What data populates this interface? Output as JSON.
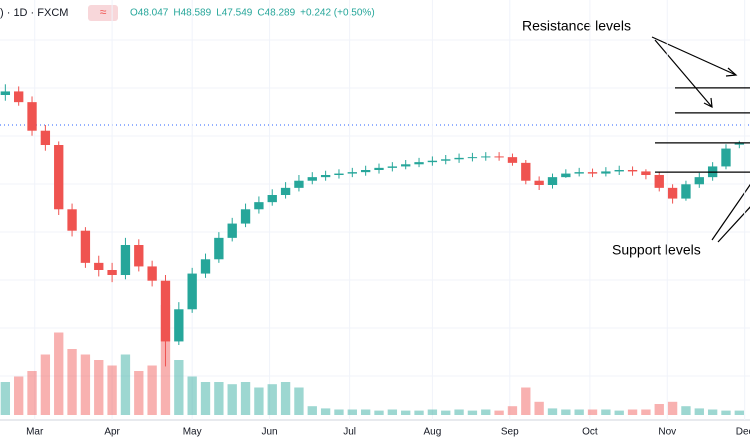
{
  "chart_data": {
    "type": "candlestick",
    "symbol": ") · 1D · FXCM",
    "badge": "≈",
    "legend_values": [
      "O48.047",
      "H48.589",
      "L47.549",
      "C48.289",
      "+0.242 (+0.50%)"
    ],
    "annotations": {
      "resistance": "Resistance levels",
      "support": "Support levels"
    },
    "resistance_levels": [
      56.0,
      52.5
    ],
    "support_levels": [
      48.3,
      44.2
    ],
    "x": [
      2,
      7,
      12,
      17,
      22,
      27,
      32,
      37,
      42,
      47,
      52,
      57,
      62,
      67,
      72,
      77,
      82,
      87,
      92,
      97,
      102,
      107,
      112,
      117,
      122,
      127,
      132,
      137,
      142,
      147,
      152,
      157,
      162,
      167,
      172,
      177,
      182,
      187,
      192,
      197,
      202,
      207,
      212,
      217,
      222,
      227,
      232,
      237,
      242,
      247,
      252,
      257,
      262,
      267,
      272,
      277
    ],
    "open": [
      55,
      55.5,
      54,
      50,
      48,
      39,
      36,
      31.5,
      30.5,
      29.8,
      34,
      31,
      29,
      20.5,
      25,
      30,
      32,
      35,
      37,
      39,
      40,
      41,
      42,
      43,
      43.5,
      43.8,
      44,
      44.2,
      44.5,
      44.8,
      45,
      45.3,
      45.6,
      45.8,
      46,
      46.2,
      46.3,
      46.4,
      46.3,
      45.5,
      43,
      42.4,
      43.5,
      44,
      44.2,
      44,
      44.3,
      44.5,
      44.3,
      43.8,
      42,
      40.5,
      42.5,
      43.5,
      45,
      48.047
    ],
    "high": [
      56.5,
      56.2,
      54.8,
      50.8,
      48.5,
      39.8,
      36.5,
      32.5,
      31.5,
      35,
      34.8,
      31.8,
      29.8,
      26,
      30.8,
      32.8,
      35.8,
      37.8,
      39.8,
      40.8,
      41.8,
      42.8,
      43.8,
      44.2,
      44.4,
      44.6,
      44.8,
      45.1,
      45.4,
      45.6,
      45.9,
      46.2,
      46.4,
      46.6,
      46.8,
      46.9,
      47,
      47,
      46.8,
      45.9,
      43.6,
      44,
      44.6,
      44.8,
      44.7,
      44.9,
      45.1,
      45,
      44.6,
      44.2,
      42.5,
      43,
      44.1,
      45.6,
      48.1,
      48.589
    ],
    "low": [
      54.2,
      53.5,
      49.3,
      47.2,
      38.2,
      35.2,
      30.8,
      29.6,
      28.8,
      29.2,
      30.3,
      28.2,
      17,
      20,
      24.5,
      29.4,
      31.5,
      34.5,
      36.5,
      38.4,
      39.5,
      40.5,
      41.5,
      42.5,
      43,
      43.3,
      43.5,
      43.7,
      44,
      44.3,
      44.6,
      44.9,
      45.1,
      45.3,
      45.5,
      45.7,
      45.8,
      45.8,
      45.1,
      42.5,
      41.7,
      41.9,
      43.4,
      43.6,
      43.5,
      43.6,
      43.8,
      43.7,
      43.2,
      41.5,
      39.8,
      40.2,
      42,
      43,
      44.6,
      47.549
    ],
    "close": [
      55.5,
      54,
      50,
      48,
      39,
      36,
      31.5,
      30.5,
      29.8,
      34,
      31,
      29,
      20.5,
      25,
      30,
      32,
      35,
      37,
      39,
      40,
      41,
      42,
      43,
      43.5,
      43.8,
      44,
      44.2,
      44.5,
      44.8,
      45,
      45.3,
      45.6,
      45.8,
      46,
      46.2,
      46.3,
      46.4,
      46.3,
      45.5,
      43,
      42.4,
      43.5,
      44,
      44.2,
      44,
      44.3,
      44.5,
      44.3,
      43.8,
      42,
      40.5,
      42.5,
      43.5,
      45,
      47.5,
      48.289
    ],
    "volume": [
      30,
      35,
      40,
      55,
      75,
      60,
      55,
      50,
      45,
      55,
      40,
      45,
      100,
      50,
      35,
      30,
      30,
      28,
      30,
      25,
      28,
      30,
      25,
      8,
      6,
      5,
      5,
      5,
      4,
      5,
      4,
      4,
      5,
      4,
      5,
      4,
      5,
      4,
      8,
      25,
      12,
      6,
      5,
      5,
      5,
      5,
      4,
      5,
      5,
      10,
      12,
      8,
      6,
      5,
      4,
      4
    ],
    "up_color": "#26a69a",
    "down_color": "#ef5350",
    "level_color": "#000000",
    "xlim": [
      0,
      281
    ],
    "ylim": [
      9.5,
      68.3
    ],
    "vlim": [
      0,
      100
    ],
    "xticks": [
      {
        "value": 13,
        "label": "Mar"
      },
      {
        "value": 42,
        "label": "Apr"
      },
      {
        "value": 72,
        "label": "May"
      },
      {
        "value": 101,
        "label": "Jun"
      },
      {
        "value": 131,
        "label": "Jul"
      },
      {
        "value": 162,
        "label": "Aug"
      },
      {
        "value": 191,
        "label": "Sep"
      },
      {
        "value": 221,
        "label": "Oct"
      },
      {
        "value": 250,
        "label": "Nov"
      },
      {
        "value": 279,
        "label": "Dec"
      }
    ],
    "grid": true
  }
}
